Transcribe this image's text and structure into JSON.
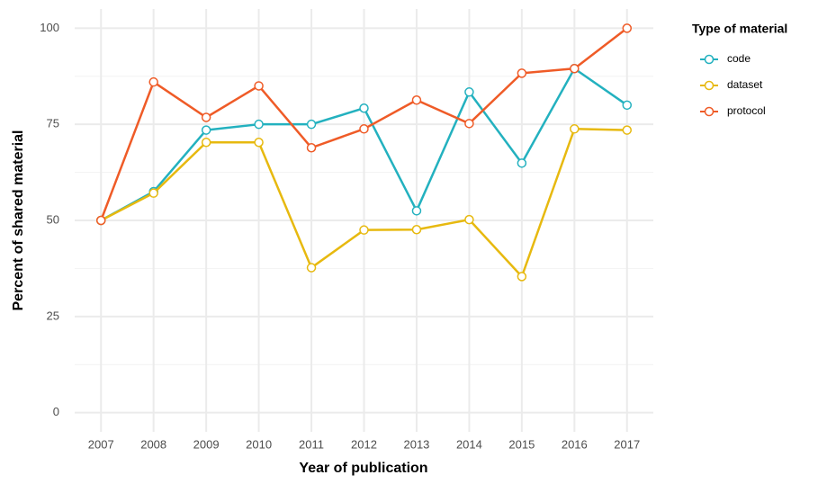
{
  "chart_data": {
    "type": "line",
    "x_label": "Year of publication",
    "y_label": "Percent of shared material",
    "legend_title": "Type of material",
    "x": [
      2007,
      2008,
      2009,
      2010,
      2011,
      2012,
      2013,
      2014,
      2015,
      2016,
      2017
    ],
    "xlim": [
      2006.5,
      2017.5
    ],
    "xticks": [
      2007,
      2008,
      2009,
      2010,
      2011,
      2012,
      2013,
      2014,
      2015,
      2016,
      2017
    ],
    "ylim": [
      -5,
      105
    ],
    "yticks": [
      0,
      25,
      50,
      75,
      100
    ],
    "grid": true,
    "legend_position": "right",
    "series": [
      {
        "name": "code",
        "color": "#23b1bf",
        "values": [
          50,
          57.5,
          73.5,
          75,
          75,
          79.2,
          52.5,
          83.4,
          64.9,
          89.5,
          80
        ]
      },
      {
        "name": "dataset",
        "color": "#e7b90f",
        "values": [
          50,
          57.1,
          70.3,
          70.3,
          37.7,
          47.5,
          47.6,
          50.2,
          35.4,
          73.8,
          73.5
        ]
      },
      {
        "name": "protocol",
        "color": "#ef5b27",
        "values": [
          50,
          86,
          76.8,
          85,
          68.9,
          73.8,
          81.3,
          75.2,
          88.3,
          89.5,
          100
        ]
      }
    ]
  }
}
